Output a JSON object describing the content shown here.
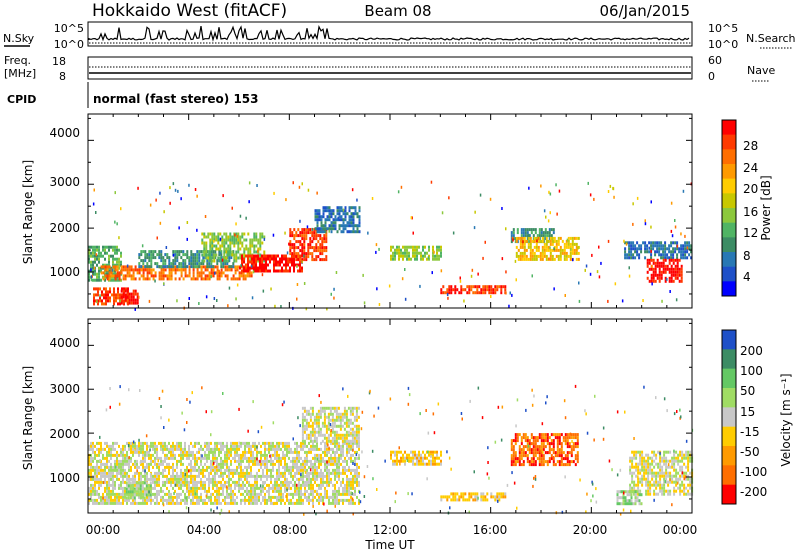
{
  "header": {
    "station": "Hokkaido West (fitACF)",
    "beam": "Beam 08",
    "date": "06/Jan/2015"
  },
  "top_panels": {
    "nsky_label": "N.Sky",
    "nsearch_label": "N.Search",
    "noise_left_ticks": [
      "10^5",
      "10^0"
    ],
    "noise_right_ticks": [
      "10^5",
      "10^0"
    ],
    "freq_label_1": "Freq.",
    "freq_label_2": "[MHz]",
    "freq_ticks": [
      "18",
      "8"
    ],
    "nave_label": "Nave",
    "nave_ticks": [
      "60",
      "0"
    ],
    "cpid_label": "CPID",
    "cpid_text": "normal (fast stereo) 153"
  },
  "chart_data": [
    {
      "type": "heatmap",
      "name": "power",
      "ylabel": "Slant Range [km]",
      "yticks": [
        "4000",
        "3000",
        "2000",
        "1000"
      ],
      "ylim": [
        180,
        4600
      ],
      "colorbar": {
        "label": "Power [dB]",
        "ticks": [
          "28",
          "24",
          "20",
          "16",
          "12",
          "8",
          "4"
        ],
        "colors": [
          "#ff0000",
          "#ff3a00",
          "#ff6e00",
          "#ff9a00",
          "#ffcc00",
          "#c8c800",
          "#8cc83c",
          "#50b464",
          "#3c8c64",
          "#2878b4",
          "#1e50c8",
          "#0000ff"
        ]
      },
      "regions": [
        {
          "t0": 0.0,
          "t1": 1.3,
          "r0": 800,
          "r1": 1600,
          "c": 7
        },
        {
          "t0": 0.2,
          "t1": 1.6,
          "r0": 300,
          "r1": 650,
          "c": 1
        },
        {
          "t0": 1.3,
          "t1": 2.0,
          "r0": 260,
          "r1": 600,
          "c": 0
        },
        {
          "t0": 0.5,
          "t1": 6.5,
          "r0": 850,
          "r1": 1150,
          "c": 2
        },
        {
          "t0": 2.0,
          "t1": 5.8,
          "r0": 1100,
          "r1": 1500,
          "c": 8
        },
        {
          "t0": 4.5,
          "t1": 7.0,
          "r0": 1250,
          "r1": 1900,
          "c": 6
        },
        {
          "t0": 6.0,
          "t1": 8.5,
          "r0": 1000,
          "r1": 1400,
          "c": 0
        },
        {
          "t0": 8.0,
          "t1": 9.5,
          "r0": 1300,
          "r1": 2000,
          "c": 1
        },
        {
          "t0": 9.0,
          "t1": 10.8,
          "r0": 1900,
          "r1": 2500,
          "c": 9
        },
        {
          "t0": 12.0,
          "t1": 14.0,
          "r0": 1300,
          "r1": 1600,
          "c": 6
        },
        {
          "t0": 14.0,
          "t1": 16.6,
          "r0": 500,
          "r1": 700,
          "c": 1
        },
        {
          "t0": 16.8,
          "t1": 18.5,
          "r0": 1700,
          "r1": 2000,
          "c": 8
        },
        {
          "t0": 17.0,
          "t1": 19.5,
          "r0": 1300,
          "r1": 1800,
          "c": 4
        },
        {
          "t0": 21.3,
          "t1": 24.0,
          "r0": 1300,
          "r1": 1700,
          "c": 9
        },
        {
          "t0": 22.2,
          "t1": 23.6,
          "r0": 800,
          "r1": 1300,
          "c": 0
        }
      ]
    },
    {
      "type": "heatmap",
      "name": "velocity",
      "ylabel": "Slant Range [km]",
      "xlabel": "Time UT",
      "xticks": [
        "00:00",
        "04:00",
        "08:00",
        "12:00",
        "16:00",
        "20:00",
        "00:00"
      ],
      "yticks": [
        "4000",
        "3000",
        "2000",
        "1000"
      ],
      "ylim": [
        180,
        4600
      ],
      "colorbar": {
        "label": "Velocity [m s⁻¹]",
        "ticks": [
          "200",
          "100",
          "50",
          "15",
          "-15",
          "-50",
          "-100",
          "-200"
        ],
        "colors": [
          "#1e50c8",
          "#3c8c64",
          "#64c864",
          "#a0dc64",
          "#c8c8c8",
          "#ffcc00",
          "#ff9a00",
          "#ff6e00",
          "#ff0000"
        ]
      },
      "regions": [
        {
          "t0": 0.0,
          "t1": 10.8,
          "r0": 400,
          "r1": 1800,
          "c": 4
        },
        {
          "t0": 1.5,
          "t1": 2.5,
          "r0": 500,
          "r1": 900,
          "c": 3
        },
        {
          "t0": 8.5,
          "t1": 10.8,
          "r0": 1800,
          "r1": 2600,
          "c": 4
        },
        {
          "t0": 12.0,
          "t1": 14.0,
          "r0": 1300,
          "r1": 1600,
          "c": 5
        },
        {
          "t0": 14.0,
          "t1": 16.6,
          "r0": 450,
          "r1": 650,
          "c": 5
        },
        {
          "t0": 16.8,
          "t1": 19.5,
          "r0": 1300,
          "r1": 2000,
          "c": 7
        },
        {
          "t0": 21.5,
          "t1": 24.0,
          "r0": 600,
          "r1": 1600,
          "c": 4
        },
        {
          "t0": 21.0,
          "t1": 22.0,
          "r0": 400,
          "r1": 700,
          "c": 3
        }
      ]
    }
  ]
}
